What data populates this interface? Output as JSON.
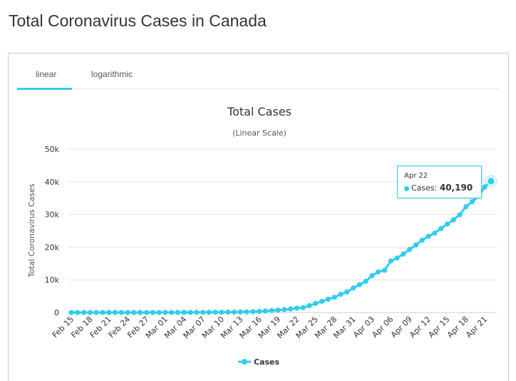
{
  "page": {
    "title": "Total Coronavirus Cases in Canada"
  },
  "tabs": [
    {
      "label": "linear",
      "active": true
    },
    {
      "label": "logarithmic",
      "active": false
    }
  ],
  "tooltip": {
    "date": "Apr 22",
    "series": "Cases",
    "value": "40,190"
  },
  "colors": {
    "series": "#33ccee",
    "grid": "#e6e6e6",
    "text": "#333333"
  },
  "chart_data": {
    "type": "line",
    "title": "Total Cases",
    "subtitle": "(Linear Scale)",
    "ylabel": "Total Coronavirus Cases",
    "xlabel": "",
    "ylim": [
      0,
      50000
    ],
    "yticks": [
      0,
      10000,
      20000,
      30000,
      40000,
      50000
    ],
    "ytick_labels": [
      "0",
      "10k",
      "20k",
      "30k",
      "40k",
      "50k"
    ],
    "grid": true,
    "legend_position": "bottom",
    "x_tick_labels": [
      "Feb 15",
      "Feb 18",
      "Feb 21",
      "Feb 24",
      "Feb 27",
      "Mar 01",
      "Mar 04",
      "Mar 07",
      "Mar 10",
      "Mar 13",
      "Mar 16",
      "Mar 19",
      "Mar 22",
      "Mar 25",
      "Mar 28",
      "Mar 31",
      "Apr 03",
      "Apr 06",
      "Apr 09",
      "Apr 12",
      "Apr 15",
      "Apr 18",
      "Apr 21"
    ],
    "x": [
      "Feb 15",
      "Feb 16",
      "Feb 17",
      "Feb 18",
      "Feb 19",
      "Feb 20",
      "Feb 21",
      "Feb 22",
      "Feb 23",
      "Feb 24",
      "Feb 25",
      "Feb 26",
      "Feb 27",
      "Feb 28",
      "Feb 29",
      "Mar 01",
      "Mar 02",
      "Mar 03",
      "Mar 04",
      "Mar 05",
      "Mar 06",
      "Mar 07",
      "Mar 08",
      "Mar 09",
      "Mar 10",
      "Mar 11",
      "Mar 12",
      "Mar 13",
      "Mar 14",
      "Mar 15",
      "Mar 16",
      "Mar 17",
      "Mar 18",
      "Mar 19",
      "Mar 20",
      "Mar 21",
      "Mar 22",
      "Mar 23",
      "Mar 24",
      "Mar 25",
      "Mar 26",
      "Mar 27",
      "Mar 28",
      "Mar 29",
      "Mar 30",
      "Mar 31",
      "Apr 01",
      "Apr 02",
      "Apr 03",
      "Apr 04",
      "Apr 05",
      "Apr 06",
      "Apr 07",
      "Apr 08",
      "Apr 09",
      "Apr 10",
      "Apr 11",
      "Apr 12",
      "Apr 13",
      "Apr 14",
      "Apr 15",
      "Apr 16",
      "Apr 17",
      "Apr 18",
      "Apr 19",
      "Apr 20",
      "Apr 21",
      "Apr 22"
    ],
    "series": [
      {
        "name": "Cases",
        "values": [
          7,
          7,
          8,
          8,
          8,
          8,
          8,
          9,
          9,
          9,
          10,
          10,
          12,
          14,
          15,
          20,
          24,
          30,
          33,
          37,
          49,
          57,
          62,
          79,
          93,
          108,
          138,
          157,
          198,
          252,
          341,
          441,
          598,
          727,
          873,
          1087,
          1331,
          1470,
          2091,
          2792,
          3409,
          4043,
          4682,
          5576,
          6280,
          7474,
          8527,
          9560,
          11283,
          12437,
          12924,
          15756,
          16667,
          17897,
          19291,
          20654,
          22148,
          23316,
          24298,
          25680,
          27063,
          28364,
          29912,
          32412,
          33922,
          35633,
          38422,
          40190
        ]
      }
    ]
  }
}
